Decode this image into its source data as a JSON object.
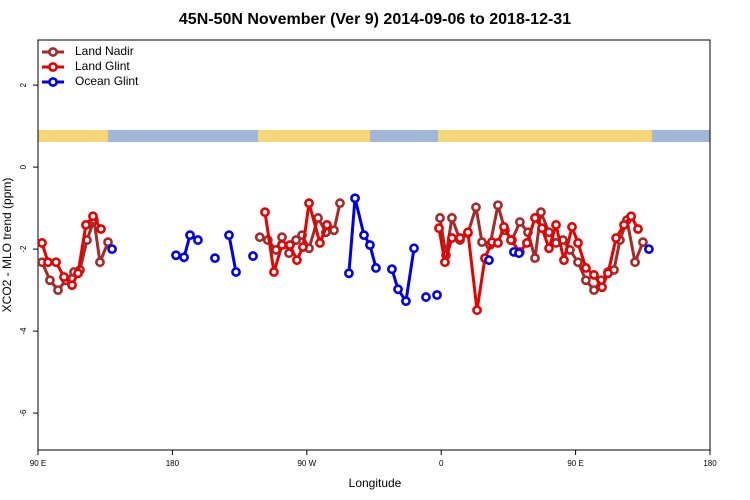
{
  "chart_data": {
    "type": "line",
    "title": "45N-50N November (Ver 9)   2014-09-06 to 2018-12-31",
    "xlabel": "Longitude",
    "ylabel": "XCO2 - MLO trend (ppm)",
    "xlim": [
      90,
      540
    ],
    "ylim": [
      -6.9,
      3.1
    ],
    "xticks": [
      {
        "value": 90,
        "label": "90 E"
      },
      180,
      {
        "value": 270,
        "label": "90 W"
      },
      {
        "value": 360,
        "label": "0"
      },
      {
        "value": 450,
        "label": "90 E"
      },
      {
        "value": 540,
        "label": "180"
      }
    ],
    "yticks": [
      2,
      0,
      -2,
      -4,
      -6
    ],
    "legend": "top-left",
    "series": [
      {
        "name": "Land Nadir",
        "color": "#a52a2a",
        "x": [
          92.7,
          98.0,
          103.4,
          108.7,
          114.1,
          118.1,
          122.8,
          127.5,
          131.5,
          136.9,
          null,
          238.5,
          243.9,
          249.4,
          253.4,
          258.1,
          262.8,
          266.8,
          271.5,
          277.5,
          282.8,
          288.2,
          292.2,
          null,
          359.2,
          363.2,
          367.2,
          372.6,
          377.9,
          383.3,
          387.3,
          392.7,
          398.0,
          402.7,
          407.4,
          412.7,
          418.1,
          422.8,
          426.8,
          432.2,
          436.9,
          441.5,
          446.2,
          451.6,
          456.9,
          462.3,
          467.0,
          471.7,
          475.7,
          479.7,
          484.4,
          489.8,
          495.1
        ],
        "values": [
          -2.32,
          -2.76,
          -3.0,
          -2.76,
          -2.56,
          -2.51,
          -1.78,
          -1.29,
          -2.32,
          -1.83,
          null,
          -1.71,
          -1.78,
          -2.02,
          -1.71,
          -2.1,
          -1.78,
          -1.66,
          -1.98,
          -1.24,
          -1.59,
          -1.54,
          -0.88,
          null,
          -1.24,
          -2.15,
          -1.24,
          -1.78,
          -1.61,
          -0.98,
          -1.83,
          -1.9,
          -0.93,
          -1.54,
          -1.78,
          -1.34,
          -1.59,
          -2.22,
          -1.1,
          -1.59,
          -1.85,
          -1.78,
          -2.02,
          -2.32,
          -2.76,
          -3.0,
          -2.76,
          -2.56,
          -2.51,
          -1.78,
          -1.29,
          -2.32,
          -1.83
        ]
      },
      {
        "name": "Land Glint",
        "color": "#e60000",
        "x": [
          92.7,
          96.7,
          102.1,
          107.4,
          112.8,
          116.8,
          122.1,
          126.8,
          132.2,
          null,
          242.0,
          248.0,
          253.4,
          258.7,
          263.4,
          267.4,
          271.5,
          278.8,
          283.5,
          null,
          358.5,
          362.5,
          367.2,
          372.6,
          377.9,
          384.0,
          389.3,
          394.0,
          398.0,
          402.0,
          406.7,
          412.7,
          417.4,
          422.8,
          427.5,
          432.2,
          436.9,
          442.2,
          447.6,
          451.6,
          456.9,
          462.3,
          467.7,
          471.7,
          477.1,
          482.4,
          487.2,
          491.8
        ],
        "values": [
          -1.85,
          -2.32,
          -2.32,
          -2.68,
          -2.88,
          -2.59,
          -1.41,
          -1.2,
          -1.51,
          null,
          -1.1,
          -2.56,
          -1.9,
          -1.9,
          -2.27,
          -1.95,
          -0.88,
          -1.85,
          -1.41,
          null,
          -1.49,
          -2.32,
          -1.73,
          -1.73,
          -1.59,
          -3.49,
          -2.22,
          -1.83,
          -1.85,
          -1.46,
          -1.78,
          -2.07,
          -1.85,
          -1.24,
          -1.49,
          -1.98,
          -1.41,
          -2.27,
          -1.46,
          -1.85,
          -2.46,
          -2.63,
          -2.93,
          -2.59,
          -1.73,
          -1.41,
          -1.2,
          -1.51
        ]
      },
      {
        "name": "Ocean Glint",
        "color": "#0000e6",
        "x": [
          139.6,
          null,
          182.4,
          187.8,
          191.8,
          197.1,
          null,
          208.5,
          null,
          217.9,
          222.6,
          null,
          234.0,
          null,
          298.2,
          302.3,
          308.3,
          312.3,
          316.3,
          null,
          327.0,
          331.1,
          336.4,
          341.8,
          null,
          349.8,
          null,
          357.2,
          null,
          392.0,
          null,
          408.7,
          412.1,
          null,
          499.1
        ],
        "values": [
          -2.0,
          null,
          -2.15,
          -2.2,
          -1.66,
          -1.78,
          null,
          -2.22,
          null,
          -1.66,
          -2.56,
          null,
          -2.17,
          null,
          -2.59,
          -0.76,
          -1.66,
          -1.9,
          -2.46,
          null,
          -2.49,
          -2.98,
          -3.27,
          -1.98,
          null,
          -3.17,
          null,
          -3.12,
          null,
          -2.27,
          null,
          -2.07,
          -2.1,
          null,
          -2.0
        ]
      }
    ]
  }
}
